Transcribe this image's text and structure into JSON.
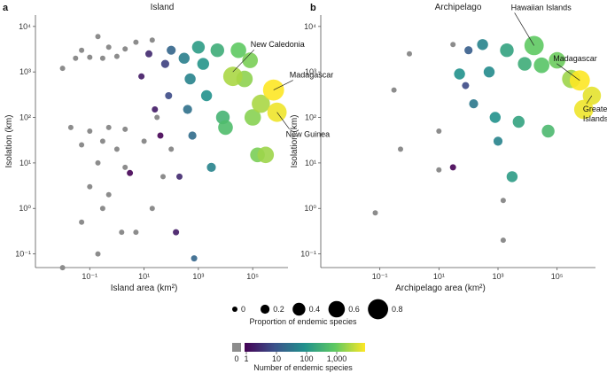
{
  "chart_data": [
    {
      "type": "scatter",
      "panel_label": "a",
      "title": "Island",
      "xlabel": "Island area (km²)",
      "ylabel": "Isolation (km)",
      "x_scale": "log10",
      "y_scale": "log10",
      "x_ticks": [
        "10⁻¹",
        "10¹",
        "10³",
        "10⁵"
      ],
      "y_ticks": [
        "10⁻¹",
        "10⁰",
        "10¹",
        "10²",
        "10³",
        "10⁴"
      ],
      "annotations": [
        {
          "text": "New Caledonia",
          "x": 18576,
          "y": 1000
        },
        {
          "text": "Madagascar",
          "x": 587000,
          "y": 400
        },
        {
          "text": "New Guinea",
          "x": 786000,
          "y": 130
        }
      ],
      "points": [
        {
          "x": 0.01,
          "y": 1200,
          "p": 0,
          "n": 0
        },
        {
          "x": 0.03,
          "y": 2000,
          "p": 0,
          "n": 0
        },
        {
          "x": 0.1,
          "y": 2100,
          "p": 0,
          "n": 0
        },
        {
          "x": 0.3,
          "y": 2000,
          "p": 0,
          "n": 0
        },
        {
          "x": 1,
          "y": 2200,
          "p": 0,
          "n": 0
        },
        {
          "x": 0.05,
          "y": 3000,
          "p": 0,
          "n": 0
        },
        {
          "x": 0.5,
          "y": 3500,
          "p": 0,
          "n": 0
        },
        {
          "x": 2,
          "y": 3200,
          "p": 0,
          "n": 0
        },
        {
          "x": 0.2,
          "y": 6000,
          "p": 0,
          "n": 0
        },
        {
          "x": 5,
          "y": 4500,
          "p": 0,
          "n": 0
        },
        {
          "x": 0.02,
          "y": 60,
          "p": 0,
          "n": 0
        },
        {
          "x": 0.1,
          "y": 50,
          "p": 0,
          "n": 0
        },
        {
          "x": 0.5,
          "y": 60,
          "p": 0,
          "n": 0
        },
        {
          "x": 2,
          "y": 55,
          "p": 0,
          "n": 0
        },
        {
          "x": 0.05,
          "y": 25,
          "p": 0,
          "n": 0
        },
        {
          "x": 0.3,
          "y": 30,
          "p": 0,
          "n": 0
        },
        {
          "x": 1,
          "y": 20,
          "p": 0,
          "n": 0
        },
        {
          "x": 0.2,
          "y": 10,
          "p": 0,
          "n": 0
        },
        {
          "x": 2,
          "y": 8,
          "p": 0,
          "n": 0
        },
        {
          "x": 0.1,
          "y": 3,
          "p": 0,
          "n": 0
        },
        {
          "x": 0.5,
          "y": 2,
          "p": 0,
          "n": 0
        },
        {
          "x": 0.05,
          "y": 0.5,
          "p": 0,
          "n": 0
        },
        {
          "x": 0.3,
          "y": 1,
          "p": 0,
          "n": 0
        },
        {
          "x": 1.5,
          "y": 0.3,
          "p": 0,
          "n": 0
        },
        {
          "x": 0.01,
          "y": 0.05,
          "p": 0,
          "n": 0
        },
        {
          "x": 0.2,
          "y": 0.1,
          "p": 0,
          "n": 0
        },
        {
          "x": 5,
          "y": 0.3,
          "p": 0,
          "n": 0
        },
        {
          "x": 20,
          "y": 1,
          "p": 0,
          "n": 0
        },
        {
          "x": 50,
          "y": 5,
          "p": 0,
          "n": 0
        },
        {
          "x": 10,
          "y": 30,
          "p": 0,
          "n": 0
        },
        {
          "x": 100,
          "y": 20,
          "p": 0,
          "n": 0
        },
        {
          "x": 30,
          "y": 100,
          "p": 0,
          "n": 0
        },
        {
          "x": 20,
          "y": 5000,
          "p": 0,
          "n": 0
        },
        {
          "x": 3,
          "y": 6,
          "p": 0.05,
          "n": 1
        },
        {
          "x": 8,
          "y": 800,
          "p": 0.05,
          "n": 2
        },
        {
          "x": 15,
          "y": 2500,
          "p": 0.1,
          "n": 3
        },
        {
          "x": 25,
          "y": 150,
          "p": 0.05,
          "n": 2
        },
        {
          "x": 40,
          "y": 40,
          "p": 0.05,
          "n": 1
        },
        {
          "x": 60,
          "y": 1500,
          "p": 0.15,
          "n": 6
        },
        {
          "x": 100,
          "y": 3000,
          "p": 0.2,
          "n": 20
        },
        {
          "x": 80,
          "y": 300,
          "p": 0.1,
          "n": 8
        },
        {
          "x": 150,
          "y": 0.3,
          "p": 0.05,
          "n": 2
        },
        {
          "x": 200,
          "y": 5,
          "p": 0.05,
          "n": 3
        },
        {
          "x": 300,
          "y": 2000,
          "p": 0.3,
          "n": 50
        },
        {
          "x": 500,
          "y": 700,
          "p": 0.3,
          "n": 60
        },
        {
          "x": 400,
          "y": 150,
          "p": 0.2,
          "n": 30
        },
        {
          "x": 600,
          "y": 40,
          "p": 0.15,
          "n": 25
        },
        {
          "x": 700,
          "y": 0.08,
          "p": 0.05,
          "n": 20
        },
        {
          "x": 1000,
          "y": 3500,
          "p": 0.4,
          "n": 150
        },
        {
          "x": 1500,
          "y": 1500,
          "p": 0.35,
          "n": 120
        },
        {
          "x": 2000,
          "y": 300,
          "p": 0.3,
          "n": 100
        },
        {
          "x": 3000,
          "y": 8,
          "p": 0.2,
          "n": 60
        },
        {
          "x": 5000,
          "y": 3000,
          "p": 0.45,
          "n": 300
        },
        {
          "x": 8000,
          "y": 100,
          "p": 0.45,
          "n": 400
        },
        {
          "x": 10000,
          "y": 60,
          "p": 0.5,
          "n": 600
        },
        {
          "x": 18576,
          "y": 800,
          "p": 0.75,
          "n": 3000
        },
        {
          "x": 30000,
          "y": 3000,
          "p": 0.55,
          "n": 1000
        },
        {
          "x": 50000,
          "y": 700,
          "p": 0.6,
          "n": 2000
        },
        {
          "x": 80000,
          "y": 1800,
          "p": 0.55,
          "n": 1500
        },
        {
          "x": 100000,
          "y": 100,
          "p": 0.6,
          "n": 1800
        },
        {
          "x": 150000,
          "y": 15,
          "p": 0.5,
          "n": 1500
        },
        {
          "x": 200000,
          "y": 200,
          "p": 0.7,
          "n": 3000
        },
        {
          "x": 300000,
          "y": 15,
          "p": 0.6,
          "n": 2500
        },
        {
          "x": 587000,
          "y": 400,
          "p": 0.85,
          "n": 10000
        },
        {
          "x": 786000,
          "y": 130,
          "p": 0.75,
          "n": 8000
        }
      ]
    },
    {
      "type": "scatter",
      "panel_label": "b",
      "title": "Archipelago",
      "xlabel": "Archipelago area (km²)",
      "ylabel": "Isolation (km)",
      "x_scale": "log10",
      "y_scale": "log10",
      "x_ticks": [
        "10⁻¹",
        "10¹",
        "10³",
        "10⁵"
      ],
      "y_ticks": [
        "10⁻¹",
        "10⁰",
        "10¹",
        "10²",
        "10³",
        "10⁴"
      ],
      "annotations": [
        {
          "text": "Hawaiian Islands",
          "x": 16600,
          "y": 3800
        },
        {
          "text": "Madagascar",
          "x": 587000,
          "y": 650
        },
        {
          "text": "Greater Sunda Islands",
          "x": 1500000,
          "y": 300
        }
      ],
      "points": [
        {
          "x": 0.07,
          "y": 0.8,
          "p": 0,
          "n": 0
        },
        {
          "x": 0.3,
          "y": 400,
          "p": 0,
          "n": 0
        },
        {
          "x": 0.5,
          "y": 20,
          "p": 0,
          "n": 0
        },
        {
          "x": 1,
          "y": 2500,
          "p": 0,
          "n": 0
        },
        {
          "x": 10,
          "y": 7,
          "p": 0,
          "n": 0
        },
        {
          "x": 10,
          "y": 50,
          "p": 0,
          "n": 0
        },
        {
          "x": 30,
          "y": 4000,
          "p": 0,
          "n": 0
        },
        {
          "x": 1500,
          "y": 0.2,
          "p": 0,
          "n": 0
        },
        {
          "x": 1500,
          "y": 1.5,
          "p": 0,
          "n": 0
        },
        {
          "x": 30,
          "y": 8,
          "p": 0.05,
          "n": 1
        },
        {
          "x": 50,
          "y": 900,
          "p": 0.3,
          "n": 100
        },
        {
          "x": 80,
          "y": 500,
          "p": 0.1,
          "n": 8
        },
        {
          "x": 100,
          "y": 3000,
          "p": 0.15,
          "n": 15
        },
        {
          "x": 150,
          "y": 200,
          "p": 0.2,
          "n": 40
        },
        {
          "x": 300,
          "y": 4000,
          "p": 0.3,
          "n": 60
        },
        {
          "x": 500,
          "y": 1000,
          "p": 0.3,
          "n": 80
        },
        {
          "x": 800,
          "y": 100,
          "p": 0.3,
          "n": 100
        },
        {
          "x": 1000,
          "y": 30,
          "p": 0.2,
          "n": 60
        },
        {
          "x": 2000,
          "y": 3000,
          "p": 0.45,
          "n": 200
        },
        {
          "x": 3000,
          "y": 5,
          "p": 0.3,
          "n": 150
        },
        {
          "x": 5000,
          "y": 80,
          "p": 0.35,
          "n": 200
        },
        {
          "x": 8000,
          "y": 1500,
          "p": 0.45,
          "n": 300
        },
        {
          "x": 16600,
          "y": 3800,
          "p": 0.75,
          "n": 1000
        },
        {
          "x": 30000,
          "y": 1400,
          "p": 0.55,
          "n": 800
        },
        {
          "x": 50000,
          "y": 50,
          "p": 0.4,
          "n": 500
        },
        {
          "x": 100000,
          "y": 1800,
          "p": 0.6,
          "n": 1200
        },
        {
          "x": 300000,
          "y": 700,
          "p": 0.7,
          "n": 2500
        },
        {
          "x": 587000,
          "y": 650,
          "p": 0.8,
          "n": 10000
        },
        {
          "x": 1500000,
          "y": 300,
          "p": 0.7,
          "n": 7000
        },
        {
          "x": 800000,
          "y": 150,
          "p": 0.75,
          "n": 8000
        }
      ]
    }
  ],
  "legend": {
    "size_title": "Proportion of endemic species",
    "size_values": [
      0,
      0.2,
      0.4,
      0.6,
      0.8
    ],
    "size_labels": [
      "0",
      "0.2",
      "0.4",
      "0.6",
      "0.8"
    ],
    "color_title": "Number of endemic species",
    "zero_label": "0",
    "color_ticks": [
      "1",
      "10",
      "100",
      "1,000"
    ],
    "colors": {
      "zero": "#8c8c8c",
      "viridis": [
        "#440154",
        "#3b528b",
        "#21918c",
        "#5ec962",
        "#fde725"
      ]
    }
  }
}
